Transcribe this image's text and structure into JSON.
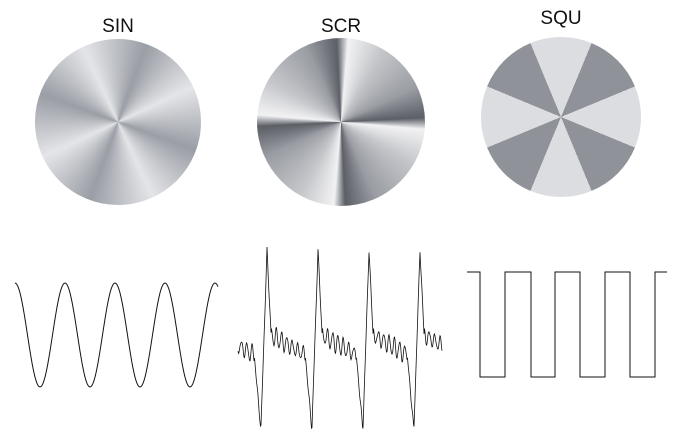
{
  "labels": [
    "SIN",
    "SCR",
    "SQU"
  ]
}
